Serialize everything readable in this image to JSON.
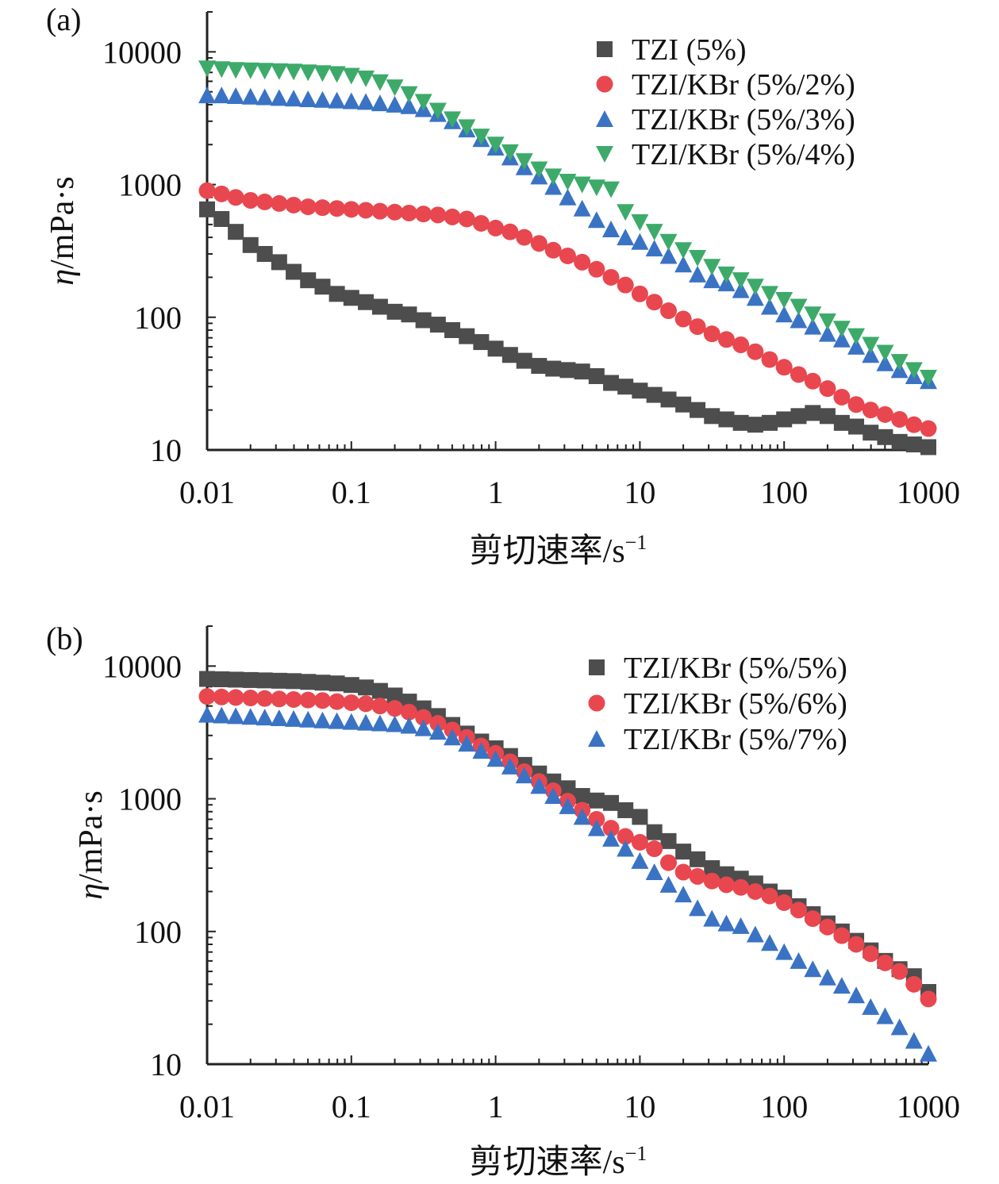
{
  "chart_data": [
    {
      "type": "scatter",
      "panel_label": "(a)",
      "xlabel": "剪切速率/s",
      "xlabel_superscript": "−1",
      "ylabel": "η/mPa·s",
      "xscale": "log",
      "yscale": "log",
      "xlim": [
        0.01,
        1000
      ],
      "ylim": [
        10,
        20000
      ],
      "xticks": [
        0.01,
        0.1,
        1,
        10,
        100,
        1000
      ],
      "xtick_labels": [
        "0.01",
        "0.1",
        "1",
        "10",
        "100",
        "1000"
      ],
      "yticks": [
        10,
        100,
        1000,
        10000
      ],
      "ytick_labels": [
        "10",
        "100",
        "1000",
        "10000"
      ],
      "legend_position": "top-right",
      "series": [
        {
          "name": "TZI (5%)",
          "marker": "square",
          "color": "#4d4d4d",
          "x": [
            0.01,
            0.0126,
            0.0158,
            0.02,
            0.0251,
            0.0316,
            0.0398,
            0.0501,
            0.0631,
            0.0794,
            0.1,
            0.126,
            0.158,
            0.2,
            0.251,
            0.316,
            0.398,
            0.501,
            0.631,
            0.794,
            1,
            1.26,
            1.58,
            2,
            2.51,
            3.16,
            3.98,
            5.01,
            6.31,
            7.94,
            10,
            12.6,
            15.8,
            20,
            25.1,
            31.6,
            39.8,
            50.1,
            63.1,
            79.4,
            100,
            126,
            158,
            200,
            251,
            316,
            398,
            501,
            631,
            794,
            1000
          ],
          "y": [
            650,
            550,
            440,
            350,
            300,
            260,
            220,
            190,
            170,
            150,
            140,
            130,
            120,
            110,
            105,
            95,
            88,
            80,
            72,
            65,
            58,
            52,
            47,
            43,
            41,
            40,
            39,
            36,
            32,
            30,
            28,
            26,
            24,
            22,
            20,
            18,
            17,
            16,
            15.5,
            16,
            17,
            18,
            19,
            18,
            16,
            15,
            13.5,
            12.5,
            11.5,
            11,
            10.5
          ]
        },
        {
          "name": "TZI/KBr (5%/2%)",
          "marker": "circle",
          "color": "#e8474f",
          "x": [
            0.01,
            0.0126,
            0.0158,
            0.02,
            0.0251,
            0.0316,
            0.0398,
            0.0501,
            0.0631,
            0.0794,
            0.1,
            0.126,
            0.158,
            0.2,
            0.251,
            0.316,
            0.398,
            0.501,
            0.631,
            0.794,
            1,
            1.26,
            1.58,
            2,
            2.51,
            3.16,
            3.98,
            5.01,
            6.31,
            7.94,
            10,
            12.6,
            15.8,
            20,
            25.1,
            31.6,
            39.8,
            50.1,
            63.1,
            79.4,
            100,
            126,
            158,
            200,
            251,
            316,
            398,
            501,
            631,
            794,
            1000
          ],
          "y": [
            900,
            850,
            800,
            760,
            740,
            720,
            700,
            680,
            670,
            660,
            650,
            640,
            630,
            620,
            610,
            600,
            590,
            570,
            550,
            510,
            470,
            440,
            400,
            360,
            320,
            290,
            260,
            230,
            200,
            175,
            150,
            130,
            112,
            97,
            85,
            75,
            68,
            62,
            55,
            48,
            42,
            37,
            33,
            29,
            25,
            22,
            20,
            18.5,
            17,
            15.5,
            14.5
          ]
        },
        {
          "name": "TZI/KBr (5%/3%)",
          "marker": "triangle-up",
          "color": "#3a73c4",
          "x": [
            0.01,
            0.0126,
            0.0158,
            0.02,
            0.0251,
            0.0316,
            0.0398,
            0.0501,
            0.0631,
            0.0794,
            0.1,
            0.126,
            0.158,
            0.2,
            0.251,
            0.316,
            0.398,
            0.501,
            0.631,
            0.794,
            1,
            1.26,
            1.58,
            2,
            2.51,
            3.16,
            3.98,
            5.01,
            6.31,
            7.94,
            10,
            12.6,
            15.8,
            20,
            25.1,
            31.6,
            39.8,
            50.1,
            63.1,
            79.4,
            100,
            126,
            158,
            200,
            251,
            316,
            398,
            501,
            631,
            794,
            1000
          ],
          "y": [
            4700,
            4700,
            4650,
            4600,
            4550,
            4500,
            4450,
            4400,
            4350,
            4300,
            4250,
            4200,
            4100,
            4000,
            3900,
            3700,
            3400,
            3000,
            2600,
            2200,
            1900,
            1600,
            1350,
            1150,
            960,
            800,
            660,
            540,
            460,
            400,
            370,
            330,
            290,
            250,
            210,
            190,
            180,
            160,
            140,
            120,
            105,
            95,
            85,
            75,
            68,
            60,
            52,
            45,
            40,
            36,
            33
          ]
        },
        {
          "name": "TZI/KBr (5%/4%)",
          "marker": "triangle-down",
          "color": "#3daa6a",
          "x": [
            0.01,
            0.0126,
            0.0158,
            0.02,
            0.0251,
            0.0316,
            0.0398,
            0.0501,
            0.0631,
            0.0794,
            0.1,
            0.126,
            0.158,
            0.2,
            0.251,
            0.316,
            0.398,
            0.501,
            0.631,
            0.794,
            1,
            1.26,
            1.58,
            2,
            2.51,
            3.16,
            3.98,
            5.01,
            6.31,
            7.94,
            10,
            12.6,
            15.8,
            20,
            25.1,
            31.6,
            39.8,
            50.1,
            63.1,
            79.4,
            100,
            126,
            158,
            200,
            251,
            316,
            398,
            501,
            631,
            794,
            1000
          ],
          "y": [
            7500,
            7400,
            7300,
            7250,
            7200,
            7150,
            7100,
            7000,
            6900,
            6800,
            6600,
            6300,
            5900,
            5400,
            4800,
            4200,
            3600,
            3100,
            2700,
            2300,
            2000,
            1750,
            1500,
            1300,
            1150,
            1050,
            1000,
            950,
            920,
            620,
            520,
            440,
            370,
            320,
            280,
            240,
            210,
            190,
            170,
            150,
            135,
            120,
            105,
            93,
            82,
            72,
            62,
            54,
            46,
            40,
            35
          ]
        }
      ]
    },
    {
      "type": "scatter",
      "panel_label": "(b)",
      "xlabel": "剪切速率/s",
      "xlabel_superscript": "−1",
      "ylabel": "η/mPa·s",
      "xscale": "log",
      "yscale": "log",
      "xlim": [
        0.01,
        1000
      ],
      "ylim": [
        10,
        20000
      ],
      "xticks": [
        0.01,
        0.1,
        1,
        10,
        100,
        1000
      ],
      "xtick_labels": [
        "0.01",
        "0.1",
        "1",
        "10",
        "100",
        "1000"
      ],
      "yticks": [
        10,
        100,
        1000,
        10000
      ],
      "ytick_labels": [
        "10",
        "100",
        "1000",
        "10000"
      ],
      "legend_position": "top-right",
      "series": [
        {
          "name": "TZI/KBr (5%/5%)",
          "marker": "square",
          "color": "#4d4d4d",
          "x": [
            0.01,
            0.0126,
            0.0158,
            0.02,
            0.0251,
            0.0316,
            0.0398,
            0.0501,
            0.0631,
            0.0794,
            0.1,
            0.126,
            0.158,
            0.2,
            0.251,
            0.316,
            0.398,
            0.501,
            0.631,
            0.794,
            1,
            1.26,
            1.58,
            2,
            2.51,
            3.16,
            3.98,
            5.01,
            6.31,
            7.94,
            10,
            12.6,
            15.8,
            20,
            25.1,
            31.6,
            39.8,
            50.1,
            63.1,
            79.4,
            100,
            126,
            158,
            200,
            251,
            316,
            398,
            501,
            631,
            794,
            1000
          ],
          "y": [
            8000,
            7950,
            7900,
            7850,
            7800,
            7750,
            7700,
            7600,
            7500,
            7400,
            7200,
            6900,
            6500,
            6000,
            5400,
            4800,
            4200,
            3600,
            3100,
            2700,
            2400,
            2100,
            1800,
            1550,
            1350,
            1200,
            1050,
            970,
            930,
            820,
            730,
            560,
            480,
            400,
            350,
            300,
            270,
            250,
            230,
            200,
            180,
            155,
            135,
            115,
            100,
            85,
            72,
            60,
            52,
            46,
            35
          ]
        },
        {
          "name": "TZI/KBr (5%/6%)",
          "marker": "circle",
          "color": "#e8474f",
          "x": [
            0.01,
            0.0126,
            0.0158,
            0.02,
            0.0251,
            0.0316,
            0.0398,
            0.0501,
            0.0631,
            0.0794,
            0.1,
            0.126,
            0.158,
            0.2,
            0.251,
            0.316,
            0.398,
            0.501,
            0.631,
            0.794,
            1,
            1.26,
            1.58,
            2,
            2.51,
            3.16,
            3.98,
            5.01,
            6.31,
            7.94,
            10,
            12.6,
            15.8,
            20,
            25.1,
            31.6,
            39.8,
            50.1,
            63.1,
            79.4,
            100,
            126,
            158,
            200,
            251,
            316,
            398,
            501,
            631,
            794,
            1000
          ],
          "y": [
            5900,
            5850,
            5800,
            5750,
            5700,
            5650,
            5600,
            5550,
            5500,
            5400,
            5300,
            5200,
            5000,
            4800,
            4500,
            4100,
            3700,
            3300,
            2900,
            2500,
            2200,
            1900,
            1600,
            1350,
            1150,
            960,
            820,
            700,
            600,
            520,
            470,
            420,
            330,
            280,
            260,
            240,
            225,
            215,
            200,
            185,
            165,
            145,
            125,
            108,
            93,
            80,
            68,
            58,
            50,
            40,
            31
          ]
        },
        {
          "name": "TZI/KBr (5%/7%)",
          "marker": "triangle-up",
          "color": "#3a73c4",
          "x": [
            0.01,
            0.0126,
            0.0158,
            0.02,
            0.0251,
            0.0316,
            0.0398,
            0.0501,
            0.0631,
            0.0794,
            0.1,
            0.126,
            0.158,
            0.2,
            0.251,
            0.316,
            0.398,
            0.501,
            0.631,
            0.794,
            1,
            1.26,
            1.58,
            2,
            2.51,
            3.16,
            3.98,
            5.01,
            6.31,
            7.94,
            10,
            12.6,
            15.8,
            20,
            25.1,
            31.6,
            39.8,
            50.1,
            63.1,
            79.4,
            100,
            126,
            158,
            200,
            251,
            316,
            398,
            501,
            631,
            794,
            1000
          ],
          "y": [
            4300,
            4250,
            4200,
            4150,
            4100,
            4050,
            4000,
            3950,
            3900,
            3850,
            3800,
            3750,
            3700,
            3650,
            3550,
            3400,
            3200,
            2900,
            2600,
            2300,
            2000,
            1750,
            1500,
            1250,
            1050,
            880,
            730,
            600,
            500,
            420,
            340,
            280,
            225,
            190,
            150,
            125,
            115,
            110,
            95,
            82,
            70,
            60,
            52,
            45,
            39,
            33,
            27,
            23,
            19,
            15,
            12
          ]
        }
      ]
    }
  ]
}
